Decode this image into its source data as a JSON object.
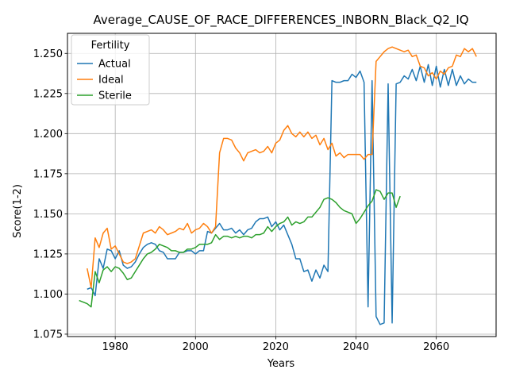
{
  "chart_data": {
    "type": "line",
    "title": "Average_CAUSE_OF_RACE_DIFFERENCES_INBORN_Black_Q2_IQ",
    "xlabel": "Years",
    "ylabel": "Score(1-2)",
    "xlim": [
      1968.1,
      2074.9
    ],
    "ylim": [
      1.0735,
      1.2625
    ],
    "xticks": [
      1980,
      2000,
      2020,
      2040,
      2060
    ],
    "yticks": [
      1.075,
      1.1,
      1.125,
      1.15,
      1.175,
      1.2,
      1.225,
      1.25
    ],
    "ytick_labels": [
      "1.075",
      "1.100",
      "1.125",
      "1.150",
      "1.175",
      "1.200",
      "1.225",
      "1.250"
    ],
    "grid": true,
    "legend": {
      "title": "Fertility",
      "position": "top-left"
    },
    "series": [
      {
        "name": "Actual",
        "color": "#1f77b4",
        "x": [
          1973,
          1974,
          1975,
          1976,
          1977,
          1978,
          1979,
          1980,
          1981,
          1982,
          1983,
          1984,
          1985,
          1986,
          1987,
          1988,
          1989,
          1990,
          1991,
          1992,
          1993,
          1994,
          1995,
          1996,
          1997,
          1998,
          1999,
          2000,
          2001,
          2002,
          2003,
          2004,
          2005,
          2006,
          2007,
          2008,
          2009,
          2010,
          2011,
          2012,
          2013,
          2014,
          2015,
          2016,
          2017,
          2018,
          2019,
          2020,
          2021,
          2022,
          2023,
          2024,
          2025,
          2026,
          2027,
          2028,
          2029,
          2030,
          2031,
          2032,
          2033,
          2034,
          2035,
          2036,
          2037,
          2038,
          2039,
          2040,
          2041,
          2042,
          2043,
          2044,
          2045,
          2046,
          2047,
          2048,
          2049,
          2050,
          2051,
          2052,
          2053,
          2054,
          2055,
          2056,
          2057,
          2058,
          2059,
          2060,
          2061,
          2062,
          2063,
          2064,
          2065,
          2066,
          2067,
          2068,
          2069,
          2070
        ],
        "values": [
          1.103,
          1.104,
          1.099,
          1.122,
          1.116,
          1.128,
          1.127,
          1.122,
          1.127,
          1.118,
          1.116,
          1.117,
          1.12,
          1.125,
          1.129,
          1.131,
          1.132,
          1.131,
          1.127,
          1.126,
          1.122,
          1.122,
          1.122,
          1.126,
          1.126,
          1.127,
          1.127,
          1.125,
          1.127,
          1.127,
          1.139,
          1.138,
          1.141,
          1.144,
          1.14,
          1.14,
          1.141,
          1.138,
          1.14,
          1.137,
          1.14,
          1.141,
          1.145,
          1.147,
          1.147,
          1.148,
          1.142,
          1.145,
          1.14,
          1.143,
          1.137,
          1.131,
          1.122,
          1.122,
          1.114,
          1.115,
          1.108,
          1.115,
          1.11,
          1.118,
          1.114,
          1.233,
          1.232,
          1.232,
          1.233,
          1.233,
          1.237,
          1.235,
          1.239,
          1.232,
          1.092,
          1.233,
          1.086,
          1.081,
          1.082,
          1.231,
          1.082,
          1.231,
          1.232,
          1.236,
          1.234,
          1.24,
          1.233,
          1.242,
          1.232,
          1.243,
          1.23,
          1.242,
          1.229,
          1.24,
          1.23,
          1.24,
          1.23,
          1.236,
          1.231,
          1.234,
          1.232,
          1.232
        ]
      },
      {
        "name": "Ideal",
        "color": "#ff7f0e",
        "x": [
          1973,
          1974,
          1975,
          1976,
          1977,
          1978,
          1979,
          1980,
          1981,
          1982,
          1983,
          1984,
          1985,
          1986,
          1987,
          1988,
          1989,
          1990,
          1991,
          1992,
          1993,
          1994,
          1995,
          1996,
          1997,
          1998,
          1999,
          2000,
          2001,
          2002,
          2003,
          2004,
          2005,
          2006,
          2007,
          2008,
          2009,
          2010,
          2011,
          2012,
          2013,
          2014,
          2015,
          2016,
          2017,
          2018,
          2019,
          2020,
          2021,
          2022,
          2023,
          2024,
          2025,
          2026,
          2027,
          2028,
          2029,
          2030,
          2031,
          2032,
          2033,
          2034,
          2035,
          2036,
          2037,
          2038,
          2039,
          2040,
          2041,
          2042,
          2043,
          2044,
          2045,
          2046,
          2047,
          2048,
          2049,
          2050,
          2051,
          2052,
          2053,
          2054,
          2055,
          2056,
          2057,
          2058,
          2059,
          2060,
          2061,
          2062,
          2063,
          2064,
          2065,
          2066,
          2067,
          2068,
          2069,
          2070
        ],
        "values": [
          1.116,
          1.104,
          1.135,
          1.129,
          1.138,
          1.141,
          1.128,
          1.13,
          1.125,
          1.12,
          1.119,
          1.12,
          1.122,
          1.13,
          1.138,
          1.139,
          1.14,
          1.138,
          1.142,
          1.14,
          1.137,
          1.138,
          1.139,
          1.141,
          1.14,
          1.144,
          1.138,
          1.14,
          1.141,
          1.144,
          1.142,
          1.138,
          1.142,
          1.188,
          1.197,
          1.197,
          1.196,
          1.191,
          1.188,
          1.183,
          1.188,
          1.189,
          1.19,
          1.188,
          1.189,
          1.192,
          1.188,
          1.194,
          1.196,
          1.202,
          1.205,
          1.2,
          1.198,
          1.201,
          1.198,
          1.201,
          1.197,
          1.199,
          1.193,
          1.197,
          1.19,
          1.194,
          1.186,
          1.188,
          1.185,
          1.187,
          1.187,
          1.187,
          1.187,
          1.184,
          1.187,
          1.187,
          1.245,
          1.248,
          1.251,
          1.253,
          1.254,
          1.253,
          1.252,
          1.251,
          1.252,
          1.248,
          1.249,
          1.242,
          1.241,
          1.236,
          1.238,
          1.234,
          1.239,
          1.237,
          1.241,
          1.242,
          1.249,
          1.248,
          1.253,
          1.251,
          1.253,
          1.248
        ]
      },
      {
        "name": "Sterile",
        "color": "#2ca02c",
        "x": [
          1971,
          1972,
          1973,
          1974,
          1975,
          1976,
          1977,
          1978,
          1979,
          1980,
          1981,
          1982,
          1983,
          1984,
          1985,
          1986,
          1987,
          1988,
          1989,
          1990,
          1991,
          1992,
          1993,
          1994,
          1995,
          1996,
          1997,
          1998,
          1999,
          2000,
          2001,
          2002,
          2003,
          2004,
          2005,
          2006,
          2007,
          2008,
          2009,
          2010,
          2011,
          2012,
          2013,
          2014,
          2015,
          2016,
          2017,
          2018,
          2019,
          2020,
          2021,
          2022,
          2023,
          2024,
          2025,
          2026,
          2027,
          2028,
          2029,
          2030,
          2031,
          2032,
          2033,
          2034,
          2035,
          2036,
          2037,
          2038,
          2039,
          2040,
          2041,
          2042,
          2043,
          2044,
          2045,
          2046,
          2047,
          2048,
          2049,
          2050,
          2051
        ],
        "values": [
          1.096,
          1.095,
          1.094,
          1.092,
          1.114,
          1.107,
          1.115,
          1.117,
          1.114,
          1.117,
          1.116,
          1.113,
          1.109,
          1.11,
          1.114,
          1.118,
          1.122,
          1.125,
          1.126,
          1.128,
          1.131,
          1.13,
          1.129,
          1.127,
          1.127,
          1.126,
          1.126,
          1.128,
          1.128,
          1.129,
          1.131,
          1.131,
          1.131,
          1.132,
          1.137,
          1.134,
          1.136,
          1.136,
          1.135,
          1.136,
          1.135,
          1.136,
          1.136,
          1.135,
          1.137,
          1.137,
          1.138,
          1.142,
          1.139,
          1.142,
          1.144,
          1.145,
          1.148,
          1.143,
          1.145,
          1.144,
          1.145,
          1.148,
          1.148,
          1.151,
          1.154,
          1.159,
          1.16,
          1.159,
          1.157,
          1.154,
          1.152,
          1.151,
          1.15,
          1.144,
          1.147,
          1.151,
          1.155,
          1.158,
          1.165,
          1.164,
          1.159,
          1.163,
          1.163,
          1.154,
          1.161
        ]
      }
    ]
  }
}
